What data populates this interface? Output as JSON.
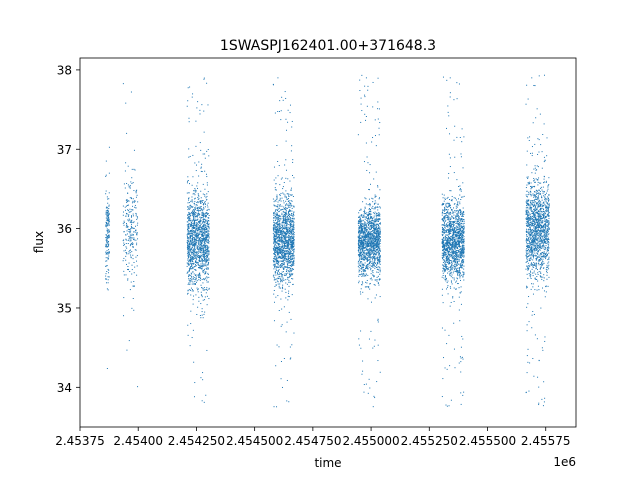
{
  "chart_data": {
    "type": "scatter",
    "title": "1SWASPJ162401.00+371648.3",
    "xlabel": "time",
    "ylabel": "flux",
    "x_offset_label": "1e6",
    "xlim": [
      2453750,
      2455880
    ],
    "ylim": [
      33.5,
      38.15
    ],
    "grid": false,
    "marker_color": "#1f77b4",
    "x_ticks": [
      {
        "value": 2453750,
        "label": "2.45375"
      },
      {
        "value": 2454000,
        "label": "2.45400"
      },
      {
        "value": 2454250,
        "label": "2.454250"
      },
      {
        "value": 2454500,
        "label": "2.454500"
      },
      {
        "value": 2454750,
        "label": "2.454750"
      },
      {
        "value": 2455000,
        "label": "2.455000"
      },
      {
        "value": 2455250,
        "label": "2.455250"
      },
      {
        "value": 2455500,
        "label": "2.455500"
      },
      {
        "value": 2455750,
        "label": "2.45575"
      }
    ],
    "y_ticks": [
      {
        "value": 34,
        "label": "34"
      },
      {
        "value": 35,
        "label": "35"
      },
      {
        "value": 36,
        "label": "36"
      },
      {
        "value": 37,
        "label": "37"
      },
      {
        "value": 38,
        "label": "38"
      }
    ],
    "seasons": [
      {
        "x_start": 2453860,
        "x_end": 2453877,
        "center": 35.95,
        "spread": 0.55,
        "density": 0.12
      },
      {
        "x_start": 2453935,
        "x_end": 2453998,
        "center": 35.95,
        "spread": 0.6,
        "density": 0.18
      },
      {
        "x_start": 2454210,
        "x_end": 2454305,
        "center": 35.85,
        "spread": 0.55,
        "density": 1.0
      },
      {
        "x_start": 2454580,
        "x_end": 2454670,
        "center": 35.85,
        "spread": 0.5,
        "density": 1.0
      },
      {
        "x_start": 2454945,
        "x_end": 2455040,
        "center": 35.85,
        "spread": 0.4,
        "density": 1.0
      },
      {
        "x_start": 2455305,
        "x_end": 2455400,
        "center": 35.85,
        "spread": 0.45,
        "density": 1.0
      },
      {
        "x_start": 2455665,
        "x_end": 2455765,
        "center": 36.0,
        "spread": 0.55,
        "density": 1.0
      }
    ],
    "sample_points": [
      {
        "x": 2453869,
        "y": 35.9
      },
      {
        "x": 2453968,
        "y": 36.0
      },
      {
        "x": 2453950,
        "y": 37.2
      },
      {
        "x": 2454240,
        "y": 35.8
      },
      {
        "x": 2454270,
        "y": 36.1
      },
      {
        "x": 2454255,
        "y": 37.6
      },
      {
        "x": 2454290,
        "y": 33.9
      },
      {
        "x": 2454610,
        "y": 35.7
      },
      {
        "x": 2454630,
        "y": 36.4
      },
      {
        "x": 2454600,
        "y": 37.9
      },
      {
        "x": 2454990,
        "y": 35.9
      },
      {
        "x": 2455010,
        "y": 36.2
      },
      {
        "x": 2454980,
        "y": 37.9
      },
      {
        "x": 2455350,
        "y": 35.8
      },
      {
        "x": 2455370,
        "y": 36.3
      },
      {
        "x": 2455340,
        "y": 37.9
      },
      {
        "x": 2455700,
        "y": 36.3
      },
      {
        "x": 2455740,
        "y": 35.5
      },
      {
        "x": 2455690,
        "y": 37.9
      },
      {
        "x": 2455720,
        "y": 33.8
      }
    ]
  }
}
